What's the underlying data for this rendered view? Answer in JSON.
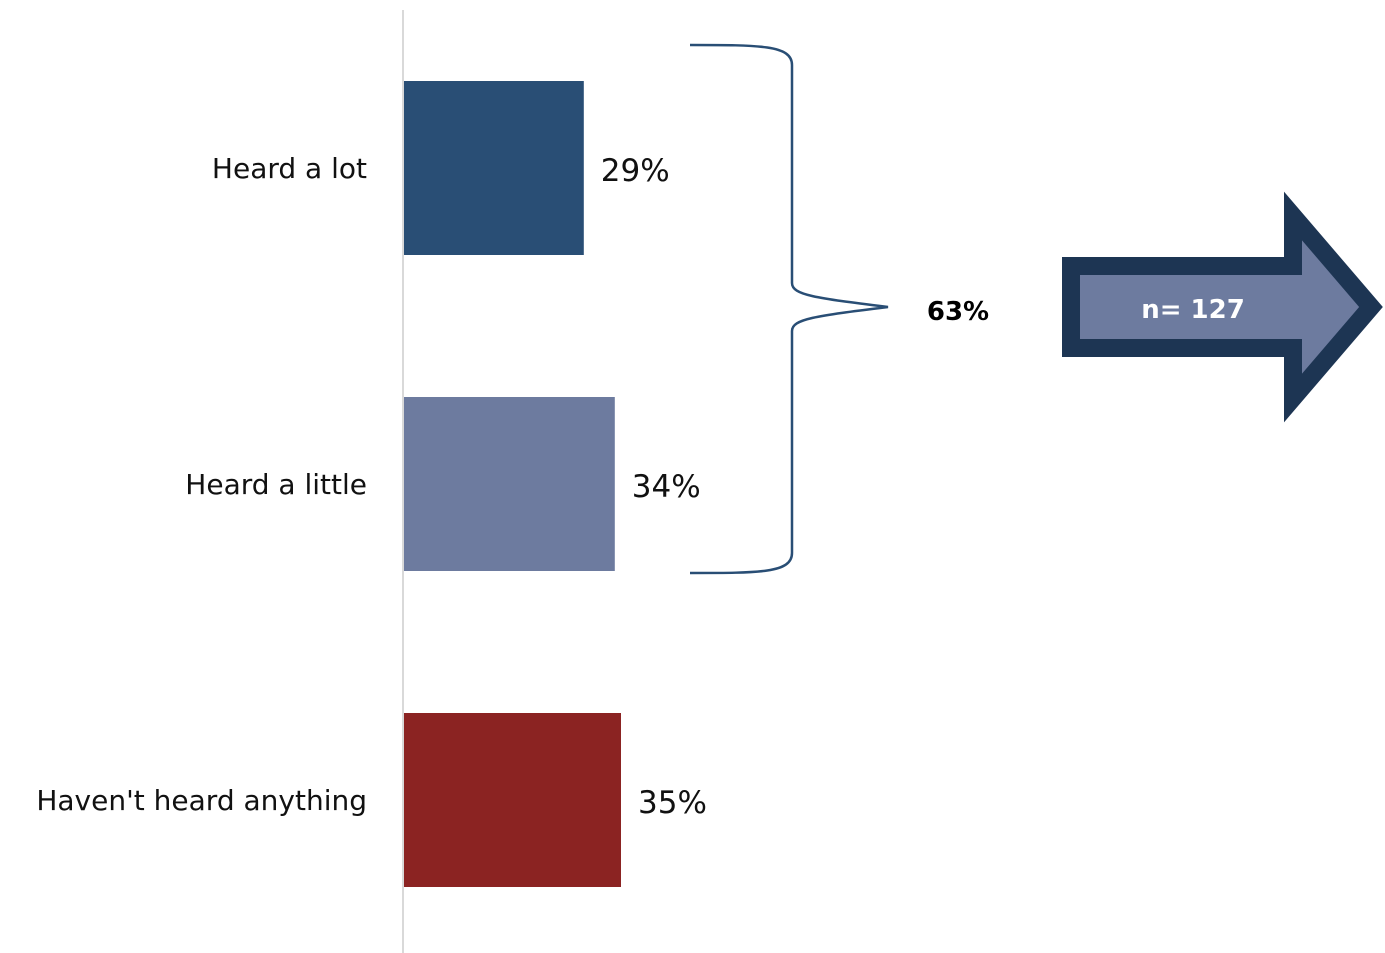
{
  "chart_data": {
    "type": "bar",
    "orientation": "horizontal",
    "categories": [
      "Heard a lot",
      "Heard a little",
      "Haven't heard anything"
    ],
    "values": [
      29,
      34,
      35
    ],
    "value_labels": [
      "29%",
      "34%",
      "35%"
    ],
    "colors": [
      "#294e75",
      "#6d7b9f",
      "#8b2322"
    ],
    "xlim": [
      0,
      100
    ],
    "grid": false,
    "legend": "none",
    "bracket_total": {
      "label": "63%",
      "groups": [
        "Heard a lot",
        "Heard a little"
      ],
      "color": "#294e75"
    },
    "callout": {
      "label": "n= 127",
      "fill": "#6d7b9f",
      "border": "#1d3553",
      "shape": "right-arrow"
    }
  }
}
